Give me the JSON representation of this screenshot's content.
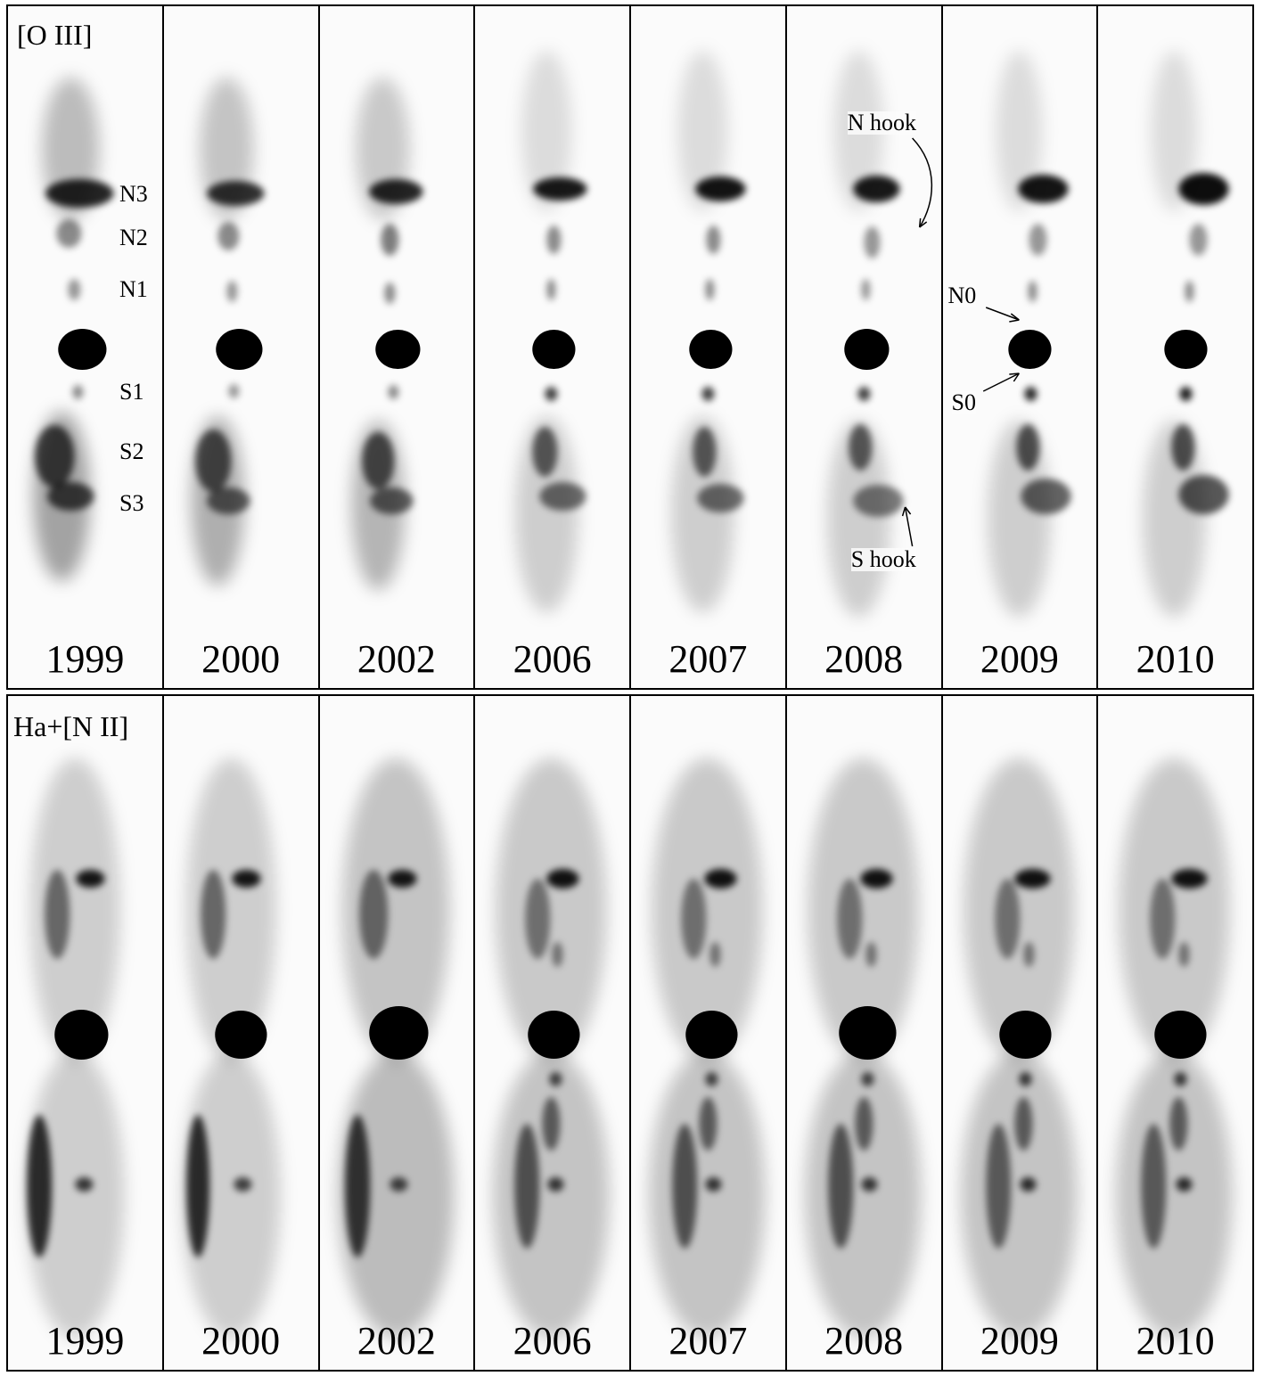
{
  "rows": [
    {
      "title": "[O III]",
      "years": [
        "1999",
        "2000",
        "2002",
        "2006",
        "2007",
        "2008",
        "2009",
        "2010"
      ],
      "knot_labels": [
        "N3",
        "N2",
        "N1",
        "S1",
        "S2",
        "S3"
      ],
      "annotations": {
        "n_hook": "N hook",
        "s_hook": "S hook",
        "n0": "N0",
        "s0": "S0"
      }
    },
    {
      "title": "Ha+[N II]",
      "years": [
        "1999",
        "2000",
        "2002",
        "2006",
        "2007",
        "2008",
        "2009",
        "2010"
      ]
    }
  ]
}
